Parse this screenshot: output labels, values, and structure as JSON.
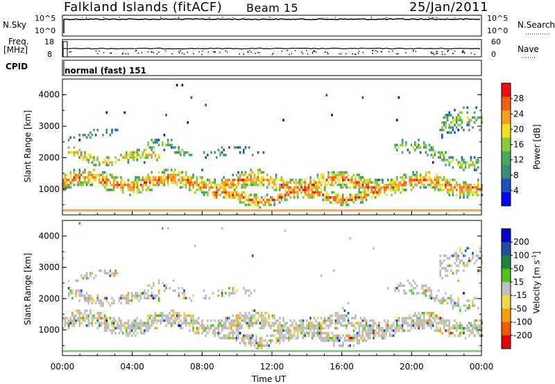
{
  "header": {
    "site": "Falkland Islands (fitACF)",
    "beam": "Beam 15",
    "date": "25/Jan/2011"
  },
  "params": {
    "nsky_label": "N.Sky",
    "nsky_ticks": [
      "10^5",
      "10^0"
    ],
    "nsearch_label": "N.Search",
    "nsearch_ticks": [
      "10^5",
      "10^0"
    ],
    "freq_label": "Freq.",
    "freq_unit": "[MHz]",
    "freq_ticks": [
      "18",
      "8"
    ],
    "nave_label": "Nave",
    "nave_ticks": [
      "60",
      "0"
    ],
    "cpid_label": "CPID",
    "cpid_value": "normal (fast) 151"
  },
  "colors": {
    "power": [
      "#0000ff",
      "#1f4fc0",
      "#3c8c7a",
      "#4aa55e",
      "#8cc83c",
      "#f0e020",
      "#f5a020",
      "#f06010",
      "#e81010"
    ],
    "velocity": [
      "#e00000",
      "#f05a00",
      "#f5a000",
      "#ecd850",
      "#c0c0c0",
      "#50c020",
      "#208040",
      "#2050a0",
      "#0000c8"
    ],
    "ground_scatter": "#a9a9a9"
  },
  "chart_data": [
    {
      "type": "heatmap",
      "name": "power",
      "xlabel": "Time UT",
      "ylabel": "Slant Range [km]",
      "x_ticks": [
        "00:00",
        "04:00",
        "08:00",
        "12:00",
        "16:00",
        "20:00",
        "00:00"
      ],
      "xlim_hours": [
        0,
        24
      ],
      "y_ticks": [
        1000,
        2000,
        3000,
        4000
      ],
      "ylim_km": [
        180,
        4500
      ],
      "colorbar_label": "Power [dB]",
      "colorbar_ticks": [
        4,
        8,
        12,
        16,
        20,
        24,
        28
      ],
      "colorbar_range": [
        0,
        30
      ]
    },
    {
      "type": "heatmap",
      "name": "velocity",
      "xlabel": "Time UT",
      "ylabel": "Slant Range [km]",
      "x_ticks": [
        "00:00",
        "04:00",
        "08:00",
        "12:00",
        "16:00",
        "20:00",
        "00:00"
      ],
      "xlim_hours": [
        0,
        24
      ],
      "y_ticks": [
        1000,
        2000,
        3000,
        4000
      ],
      "ylim_km": [
        180,
        4500
      ],
      "colorbar_label": "Velocity [m s",
      "colorbar_label_sup": "-1",
      "colorbar_label_end": "]",
      "colorbar_ticks": [
        "200",
        "100",
        "50",
        "15",
        "-15",
        "-50",
        "-100",
        "-200"
      ]
    }
  ]
}
